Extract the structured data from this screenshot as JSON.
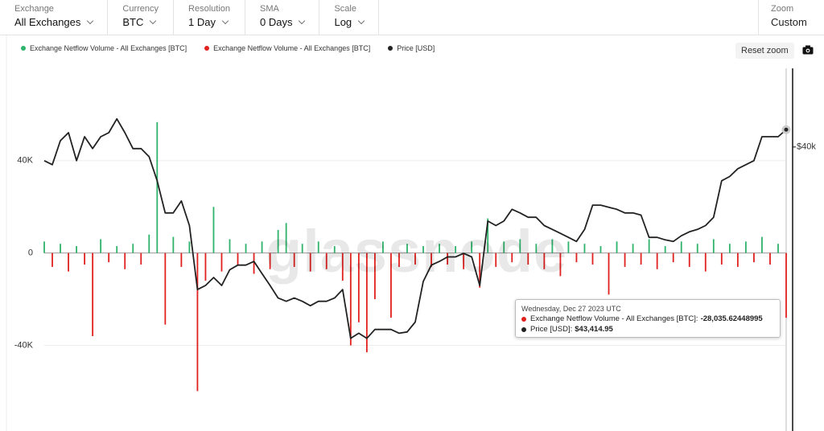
{
  "controls": [
    {
      "label": "Exchange",
      "value": "All Exchanges"
    },
    {
      "label": "Currency",
      "value": "BTC"
    },
    {
      "label": "Resolution",
      "value": "1 Day"
    },
    {
      "label": "SMA",
      "value": "0 Days"
    },
    {
      "label": "Scale",
      "value": "Log"
    }
  ],
  "zoom": {
    "label": "Zoom",
    "value": "Custom"
  },
  "reset_zoom": "Reset zoom",
  "watermark": "glassnode",
  "tooltip": {
    "date": "Wednesday, Dec 27 2023 UTC",
    "rows": [
      {
        "label": "Exchange Netflow Volume - All Exchanges [BTC]:",
        "value": "-28,035.62448995",
        "color": "#e0211f"
      },
      {
        "label": "Price [USD]:",
        "value": "$43,414.95",
        "color": "#222222"
      }
    ]
  },
  "chart_data": {
    "type": "bar",
    "ylim": [
      -75000,
      80000
    ],
    "yticks": [
      {
        "value": -40000,
        "label": "-40K"
      },
      0,
      {
        "value": 40000,
        "label": "40K"
      }
    ],
    "y2lim": [
      10700,
      58000
    ],
    "y2log": true,
    "y2ticks": [
      {
        "value": 40000,
        "label": "$40k"
      }
    ],
    "grid": true,
    "series": [
      {
        "name": "Exchange Netflow Volume - All Exchanges [BTC]",
        "color": "#2fb36b",
        "values": [
          5000,
          null,
          4000,
          null,
          3000,
          null,
          null,
          6000,
          null,
          3000,
          null,
          4000,
          null,
          8000,
          56700,
          null,
          7000,
          null,
          5000,
          null,
          null,
          20000,
          null,
          6000,
          null,
          4000,
          null,
          5000,
          null,
          10000,
          13000,
          null,
          4000,
          null,
          5000,
          null,
          3000,
          null,
          null,
          null,
          null,
          null,
          5000,
          null,
          null,
          4000,
          null,
          3000,
          null,
          4000,
          null,
          3000,
          null,
          5000,
          null,
          15000,
          null,
          5000,
          null,
          6000,
          null,
          4000,
          null,
          6000,
          null,
          5000,
          null,
          4000,
          null,
          3000,
          null,
          5000,
          null,
          4000,
          null,
          6000,
          null,
          3000,
          null,
          5000,
          null,
          4000,
          null,
          6000,
          null,
          4000,
          null,
          5000,
          null,
          7000,
          null,
          4000,
          null
        ]
      },
      {
        "name": "Exchange Netflow Volume - All Exchanges [BTC]",
        "color": "#e0211f",
        "values": [
          null,
          -6000,
          null,
          -8000,
          null,
          -5000,
          -36000,
          null,
          -4000,
          null,
          -7000,
          null,
          -5000,
          null,
          null,
          -31000,
          null,
          -6000,
          null,
          -59800,
          -12000,
          null,
          -8000,
          null,
          -5000,
          null,
          -9000,
          null,
          -7000,
          null,
          null,
          -6000,
          null,
          -8000,
          null,
          -7000,
          null,
          -12000,
          -40000,
          -30000,
          -43000,
          -20000,
          null,
          -28000,
          -6000,
          null,
          -5000,
          null,
          -6000,
          null,
          -5000,
          null,
          -7000,
          null,
          -15000,
          null,
          -6000,
          null,
          -4000,
          null,
          -5000,
          null,
          -7000,
          null,
          -10000,
          null,
          -4000,
          null,
          -5000,
          null,
          -18000,
          null,
          -6000,
          null,
          -5000,
          null,
          -7000,
          null,
          -4000,
          null,
          -6000,
          null,
          -8000,
          null,
          -5000,
          null,
          -6000,
          null,
          -4000,
          null,
          -5000,
          null,
          -28035.62448995
        ]
      },
      {
        "name": "Price [USD]",
        "color": "#222222",
        "type": "line",
        "axis": "y2",
        "values": [
          37500,
          36800,
          41200,
          42800,
          37500,
          42000,
          39700,
          42000,
          42800,
          45700,
          42800,
          39700,
          39700,
          38200,
          34100,
          29300,
          29300,
          31000,
          27600,
          20400,
          20800,
          21600,
          20800,
          22400,
          22900,
          22900,
          23300,
          22000,
          20800,
          19600,
          19300,
          19600,
          19300,
          18900,
          19300,
          19300,
          19600,
          20400,
          16200,
          16600,
          16200,
          16900,
          16900,
          16900,
          16600,
          16700,
          17500,
          21200,
          22900,
          23300,
          23800,
          23800,
          24200,
          23800,
          20800,
          28200,
          27600,
          28200,
          29800,
          29300,
          28700,
          28700,
          27600,
          27100,
          26600,
          26100,
          25600,
          27100,
          30400,
          30400,
          30100,
          29800,
          29300,
          29300,
          29000,
          26100,
          26100,
          25800,
          25600,
          26300,
          26800,
          27100,
          27600,
          28700,
          34100,
          34800,
          36100,
          36800,
          37500,
          42000,
          42000,
          42000,
          43414.95
        ]
      }
    ]
  }
}
